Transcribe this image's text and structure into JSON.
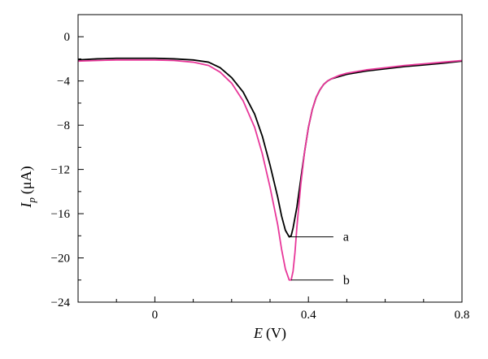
{
  "chart_data": {
    "type": "line",
    "title": "",
    "xlabel": {
      "var": "E",
      "unit": "(V)"
    },
    "ylabel": {
      "var": "I",
      "sub": "p",
      "unit": "(μA)"
    },
    "xlim": [
      -0.2,
      0.8
    ],
    "ylim": [
      -24,
      2
    ],
    "xticks": [
      0,
      0.4,
      0.8
    ],
    "xtick_labels": [
      "0",
      "0.4",
      "0.8"
    ],
    "yticks": [
      0,
      -4,
      -8,
      -12,
      -16,
      -20,
      -24
    ],
    "ytick_labels": [
      "0",
      "−4",
      "−8",
      "−12",
      "−16",
      "−20",
      "−24"
    ],
    "grid": false,
    "series": [
      {
        "name": "a",
        "color": "#000000",
        "x": [
          -0.2,
          -0.15,
          -0.1,
          -0.05,
          0.0,
          0.05,
          0.1,
          0.14,
          0.17,
          0.2,
          0.23,
          0.26,
          0.28,
          0.3,
          0.32,
          0.33,
          0.34,
          0.35,
          0.355,
          0.36,
          0.37,
          0.38,
          0.39,
          0.4,
          0.41,
          0.42,
          0.43,
          0.44,
          0.45,
          0.46,
          0.48,
          0.5,
          0.55,
          0.6,
          0.65,
          0.7,
          0.75,
          0.8
        ],
        "y": [
          -2.1,
          -2.0,
          -1.95,
          -1.95,
          -1.95,
          -2.0,
          -2.1,
          -2.3,
          -2.8,
          -3.7,
          -5.0,
          -7.0,
          -9.0,
          -11.6,
          -14.5,
          -16.2,
          -17.5,
          -18.1,
          -18.0,
          -17.3,
          -15.4,
          -12.9,
          -10.4,
          -8.2,
          -6.6,
          -5.5,
          -4.8,
          -4.3,
          -4.0,
          -3.8,
          -3.6,
          -3.4,
          -3.1,
          -2.9,
          -2.7,
          -2.55,
          -2.4,
          -2.2
        ]
      },
      {
        "name": "b",
        "color": "#e8389a",
        "x": [
          -0.2,
          -0.15,
          -0.1,
          -0.05,
          0.0,
          0.05,
          0.1,
          0.14,
          0.17,
          0.2,
          0.23,
          0.26,
          0.28,
          0.3,
          0.32,
          0.33,
          0.34,
          0.35,
          0.355,
          0.36,
          0.365,
          0.37,
          0.38,
          0.39,
          0.4,
          0.41,
          0.42,
          0.43,
          0.44,
          0.45,
          0.46,
          0.48,
          0.5,
          0.55,
          0.6,
          0.65,
          0.7,
          0.75,
          0.8
        ],
        "y": [
          -2.2,
          -2.15,
          -2.1,
          -2.1,
          -2.1,
          -2.15,
          -2.3,
          -2.6,
          -3.2,
          -4.2,
          -5.8,
          -8.2,
          -10.6,
          -13.6,
          -17.0,
          -19.2,
          -21.0,
          -22.0,
          -22.0,
          -21.2,
          -19.5,
          -17.2,
          -13.4,
          -10.4,
          -8.2,
          -6.6,
          -5.5,
          -4.8,
          -4.3,
          -4.0,
          -3.8,
          -3.5,
          -3.3,
          -3.0,
          -2.8,
          -2.6,
          -2.45,
          -2.3,
          -2.15
        ]
      }
    ],
    "annotations": [
      {
        "text": "a",
        "series": "a",
        "x": 0.352,
        "y": -18.1,
        "line_to_x": 0.465
      },
      {
        "text": "b",
        "series": "b",
        "x": 0.355,
        "y": -22.0,
        "line_to_x": 0.465
      }
    ]
  }
}
